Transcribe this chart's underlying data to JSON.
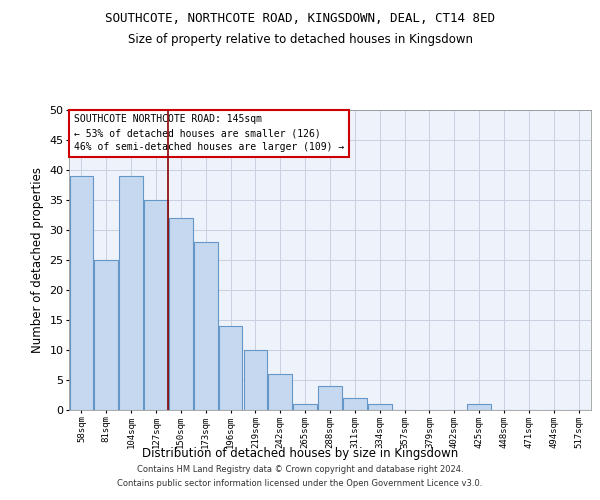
{
  "title": "SOUTHCOTE, NORTHCOTE ROAD, KINGSDOWN, DEAL, CT14 8ED",
  "subtitle": "Size of property relative to detached houses in Kingsdown",
  "xlabel": "Distribution of detached houses by size in Kingsdown",
  "ylabel": "Number of detached properties",
  "bar_color": "#c5d8f0",
  "bar_edge_color": "#6496c8",
  "categories": [
    "58sqm",
    "81sqm",
    "104sqm",
    "127sqm",
    "150sqm",
    "173sqm",
    "196sqm",
    "219sqm",
    "242sqm",
    "265sqm",
    "288sqm",
    "311sqm",
    "334sqm",
    "357sqm",
    "379sqm",
    "402sqm",
    "425sqm",
    "448sqm",
    "471sqm",
    "494sqm",
    "517sqm"
  ],
  "values": [
    39,
    25,
    39,
    35,
    32,
    28,
    14,
    10,
    6,
    1,
    4,
    2,
    1,
    0,
    0,
    0,
    1,
    0,
    0,
    0,
    0
  ],
  "ylim": [
    0,
    50
  ],
  "yticks": [
    0,
    5,
    10,
    15,
    20,
    25,
    30,
    35,
    40,
    45,
    50
  ],
  "vline_x": 3.5,
  "vline_color": "#8b0000",
  "annotation_text": "SOUTHCOTE NORTHCOTE ROAD: 145sqm\n← 53% of detached houses are smaller (126)\n46% of semi-detached houses are larger (109) →",
  "annotation_box_color": "white",
  "annotation_box_edgecolor": "#cc0000",
  "footer_line1": "Contains HM Land Registry data © Crown copyright and database right 2024.",
  "footer_line2": "Contains public sector information licensed under the Open Government Licence v3.0.",
  "background_color": "#eef2fb",
  "grid_color": "#c8cfe0"
}
